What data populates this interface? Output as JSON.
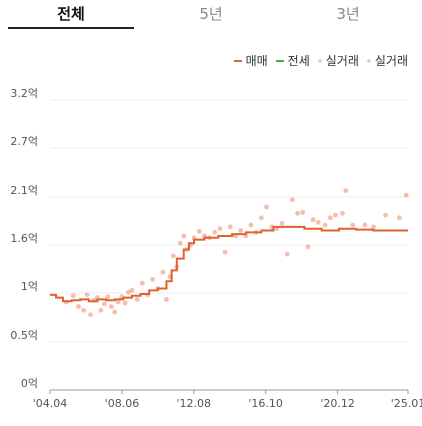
{
  "tabs": [
    {
      "label": "전체",
      "active": true
    },
    {
      "label": "5년",
      "active": false
    },
    {
      "label": "3년",
      "active": false
    }
  ],
  "legend": [
    {
      "label": "매매",
      "kind": "line",
      "color": "#e06030"
    },
    {
      "label": "전세",
      "kind": "line",
      "color": "#4caf50"
    },
    {
      "label": "실거래",
      "kind": "dot",
      "color": "#d8d8d8"
    },
    {
      "label": "실거래",
      "kind": "dot",
      "color": "#d8d8d8"
    }
  ],
  "chart_data": {
    "type": "line",
    "x_tick_labels": [
      "'04.04",
      "'08.06",
      "'12.08",
      "'16.10",
      "'20.12",
      "'25.01"
    ],
    "x_ticks": [
      2004.25,
      2008.42,
      2012.58,
      2016.75,
      2020.92,
      2025.0
    ],
    "xlim": [
      2004.25,
      2025.0
    ],
    "y_tick_labels": [
      "0억",
      "0.5억",
      "1억",
      "1.6억",
      "2.1억",
      "2.7억",
      "3.2억"
    ],
    "y_ticks": [
      0,
      0.53,
      1.07,
      1.6,
      2.13,
      2.67,
      3.2
    ],
    "ylim": [
      0,
      3.2
    ],
    "grid": true,
    "series": [
      {
        "name": "매매",
        "color": "#e06030",
        "step": true,
        "x": [
          2004.25,
          2004.6,
          2005.0,
          2005.5,
          2006.0,
          2006.5,
          2007.0,
          2007.5,
          2008.0,
          2008.5,
          2009.0,
          2009.5,
          2010.0,
          2010.5,
          2011.0,
          2011.3,
          2011.6,
          2012.0,
          2012.3,
          2012.6,
          2013.2,
          2014.0,
          2014.8,
          2015.6,
          2016.5,
          2017.2,
          2018.0,
          2019.0,
          2020.0,
          2021.0,
          2022.0,
          2023.0,
          2024.0,
          2025.0
        ],
        "y": [
          1.05,
          1.02,
          0.98,
          0.99,
          1.0,
          0.98,
          1.0,
          0.99,
          1.0,
          1.02,
          1.04,
          1.06,
          1.1,
          1.12,
          1.2,
          1.32,
          1.45,
          1.55,
          1.62,
          1.66,
          1.68,
          1.7,
          1.72,
          1.74,
          1.76,
          1.8,
          1.8,
          1.78,
          1.76,
          1.78,
          1.77,
          1.76,
          1.76,
          1.76
        ]
      },
      {
        "name": "실거래",
        "color": "#f2a78f",
        "points": [
          [
            2005.2,
            0.97
          ],
          [
            2005.6,
            1.04
          ],
          [
            2005.9,
            0.92
          ],
          [
            2006.2,
            0.88
          ],
          [
            2006.4,
            1.05
          ],
          [
            2006.6,
            0.83
          ],
          [
            2006.8,
            0.99
          ],
          [
            2007.0,
            1.02
          ],
          [
            2007.2,
            0.88
          ],
          [
            2007.4,
            0.95
          ],
          [
            2007.6,
            1.03
          ],
          [
            2007.8,
            0.92
          ],
          [
            2008.0,
            0.86
          ],
          [
            2008.2,
            0.97
          ],
          [
            2008.4,
            1.03
          ],
          [
            2008.6,
            0.96
          ],
          [
            2008.8,
            1.08
          ],
          [
            2009.0,
            1.1
          ],
          [
            2009.3,
            1.0
          ],
          [
            2009.6,
            1.18
          ],
          [
            2009.9,
            1.05
          ],
          [
            2010.2,
            1.22
          ],
          [
            2010.5,
            1.12
          ],
          [
            2010.8,
            1.3
          ],
          [
            2011.0,
            1.0
          ],
          [
            2011.2,
            1.25
          ],
          [
            2011.4,
            1.48
          ],
          [
            2011.6,
            1.36
          ],
          [
            2011.8,
            1.62
          ],
          [
            2012.0,
            1.7
          ],
          [
            2012.2,
            1.55
          ],
          [
            2012.4,
            1.6
          ],
          [
            2012.6,
            1.68
          ],
          [
            2012.9,
            1.75
          ],
          [
            2013.2,
            1.7
          ],
          [
            2013.5,
            1.68
          ],
          [
            2013.8,
            1.74
          ],
          [
            2014.1,
            1.78
          ],
          [
            2014.4,
            1.52
          ],
          [
            2014.7,
            1.8
          ],
          [
            2015.0,
            1.7
          ],
          [
            2015.3,
            1.76
          ],
          [
            2015.6,
            1.7
          ],
          [
            2015.9,
            1.82
          ],
          [
            2016.2,
            1.74
          ],
          [
            2016.5,
            1.9
          ],
          [
            2016.8,
            2.02
          ],
          [
            2017.1,
            1.8
          ],
          [
            2017.4,
            1.78
          ],
          [
            2017.7,
            1.84
          ],
          [
            2018.0,
            1.5
          ],
          [
            2018.3,
            2.1
          ],
          [
            2018.6,
            1.95
          ],
          [
            2018.9,
            1.96
          ],
          [
            2019.2,
            1.58
          ],
          [
            2019.5,
            1.88
          ],
          [
            2019.8,
            1.85
          ],
          [
            2020.2,
            1.82
          ],
          [
            2020.5,
            1.9
          ],
          [
            2020.8,
            1.93
          ],
          [
            2021.2,
            1.95
          ],
          [
            2021.4,
            2.2
          ],
          [
            2021.8,
            1.82
          ],
          [
            2022.5,
            1.82
          ],
          [
            2023.0,
            1.8
          ],
          [
            2023.7,
            1.93
          ],
          [
            2024.5,
            1.9
          ],
          [
            2024.9,
            2.15
          ]
        ]
      }
    ]
  }
}
